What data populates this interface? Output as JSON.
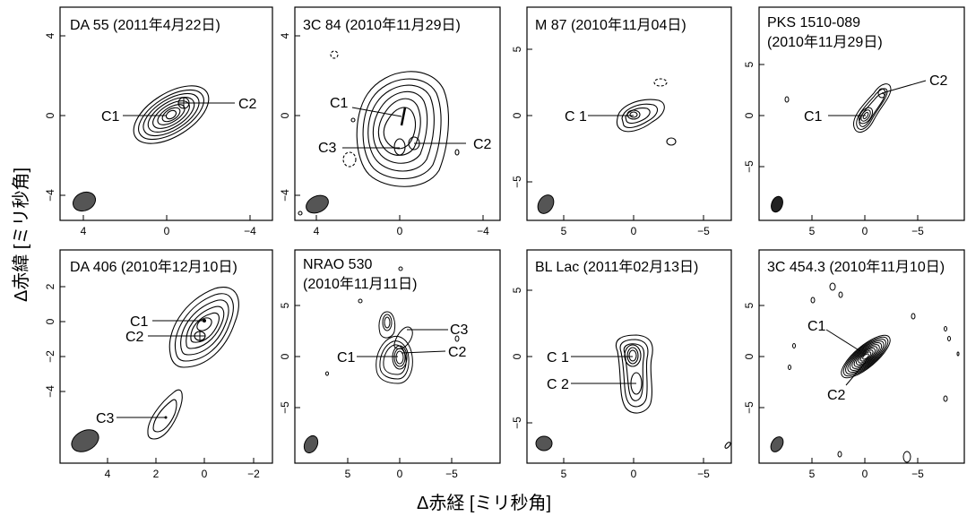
{
  "axis_titles": {
    "x": "Δ赤経 [ミリ秒角]",
    "y": "Δ赤緯 [ミリ秒角]"
  },
  "panels": [
    {
      "id": "da55",
      "title": [
        "DA 55 (2011年4月22日)"
      ],
      "yticks": [
        "4",
        "0",
        "−4"
      ],
      "xticks": [
        "4",
        "0",
        "−4"
      ],
      "labels": [
        {
          "text": "C1",
          "side": "left"
        },
        {
          "text": "C2",
          "side": "right"
        }
      ]
    },
    {
      "id": "3c84",
      "title": [
        "3C 84 (2010年11月29日)"
      ],
      "yticks": [
        "4",
        "0",
        "−4"
      ],
      "xticks": [
        "4",
        "0",
        "−4"
      ],
      "labels": [
        {
          "text": "C1",
          "side": "left"
        },
        {
          "text": "C3",
          "side": "left"
        },
        {
          "text": "C2",
          "side": "right"
        }
      ]
    },
    {
      "id": "m87",
      "title": [
        "M 87 (2010年11月04日)"
      ],
      "yticks": [
        "5",
        "0",
        "−5"
      ],
      "xticks": [
        "5",
        "0",
        "−5"
      ],
      "labels": [
        {
          "text": "C 1",
          "side": "left"
        }
      ]
    },
    {
      "id": "pks1510",
      "title": [
        "PKS 1510-089",
        "(2010年11月29日)"
      ],
      "yticks": [
        "5",
        "0",
        "−5"
      ],
      "xticks": [
        "5",
        "0",
        "−5"
      ],
      "labels": [
        {
          "text": "C1",
          "side": "left"
        },
        {
          "text": "C2",
          "side": "right"
        }
      ]
    },
    {
      "id": "da406",
      "title": [
        "DA 406 (2010年12月10日)"
      ],
      "yticks": [
        "2",
        "0",
        "−2",
        "−4"
      ],
      "xticks": [
        "4",
        "2",
        "0",
        "−2"
      ],
      "labels": [
        {
          "text": "C1",
          "side": "left"
        },
        {
          "text": "C2",
          "side": "left"
        },
        {
          "text": "C3",
          "side": "left"
        }
      ]
    },
    {
      "id": "nrao530",
      "title": [
        "NRAO 530",
        "(2010年11月11日)"
      ],
      "yticks": [
        "5",
        "0",
        "−5"
      ],
      "xticks": [
        "5",
        "0",
        "−5"
      ],
      "labels": [
        {
          "text": "C3",
          "side": "right"
        },
        {
          "text": "C1",
          "side": "left"
        },
        {
          "text": "C2",
          "side": "right"
        }
      ]
    },
    {
      "id": "bllac",
      "title": [
        "BL Lac (2011年02月13日)"
      ],
      "yticks": [
        "5",
        "0",
        "−5"
      ],
      "xticks": [
        "5",
        "0",
        "−5"
      ],
      "labels": [
        {
          "text": "C 1",
          "side": "left"
        },
        {
          "text": "C 2",
          "side": "left"
        }
      ]
    },
    {
      "id": "3c4543",
      "title": [
        "3C 454.3 (2010年11月10日)"
      ],
      "yticks": [
        "5",
        "0",
        "−5"
      ],
      "xticks": [
        "5",
        "0",
        "−5"
      ],
      "labels": [
        {
          "text": "C1",
          "side": "left"
        },
        {
          "text": "C2",
          "side": "left"
        }
      ]
    }
  ]
}
